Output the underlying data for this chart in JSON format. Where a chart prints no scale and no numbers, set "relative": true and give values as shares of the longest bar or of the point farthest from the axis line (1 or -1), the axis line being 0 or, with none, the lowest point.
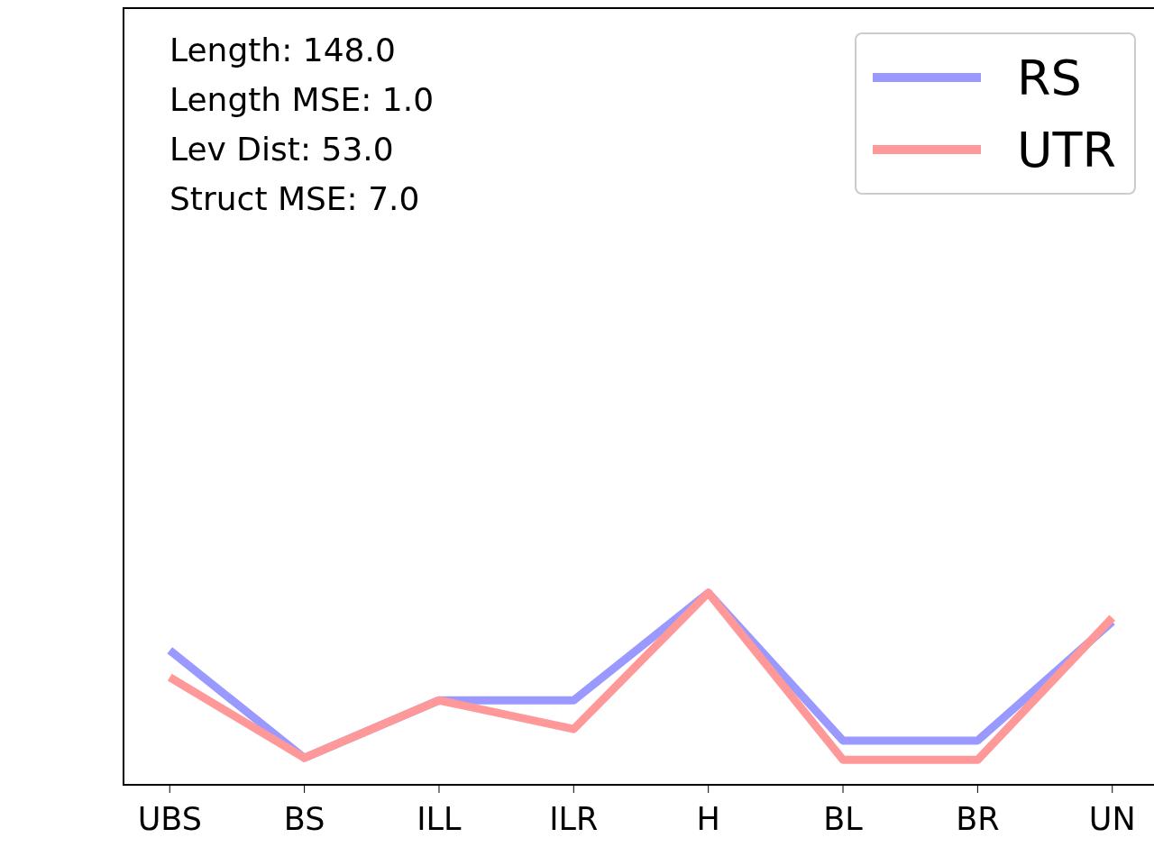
{
  "chart_data": {
    "type": "line",
    "relative": true,
    "categories": [
      "UBS",
      "BS",
      "ILL",
      "ILR",
      "H",
      "BL",
      "BR",
      "UN"
    ],
    "series": [
      {
        "name": "RS",
        "color": "#9999ff",
        "values": [
          0.7,
          0.14,
          0.44,
          0.44,
          1,
          0.23,
          0.23,
          0.85
        ]
      },
      {
        "name": "UTR",
        "color": "#ff9999",
        "values": [
          0.56,
          0.14,
          0.44,
          0.29,
          1,
          0.13,
          0.13,
          0.87
        ]
      }
    ],
    "annotations": [
      "Length: 148.0",
      "Length MSE: 1.0",
      "Lev Dist: 53.0",
      "Struct MSE: 7.0"
    ],
    "legend": "top right",
    "marker": "none",
    "line_style": "solid"
  }
}
